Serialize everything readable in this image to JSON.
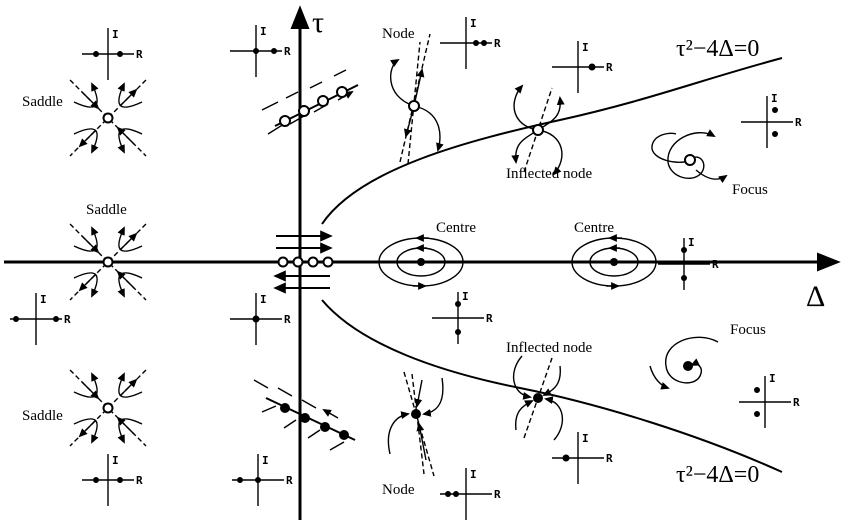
{
  "axes": {
    "horizontal_label": "Δ",
    "vertical_label": "τ"
  },
  "curves": {
    "upper_equation": "τ²−4Δ=0",
    "lower_equation": "τ²−4Δ=0"
  },
  "labels": {
    "saddle": "Saddle",
    "node": "Node",
    "inflected_node": "Inflected node",
    "centre": "Centre",
    "focus": "Focus"
  },
  "eigen_axes": {
    "imag": "I",
    "real": "R"
  },
  "colors": {
    "ink": "#000000",
    "background": "#ffffff"
  }
}
